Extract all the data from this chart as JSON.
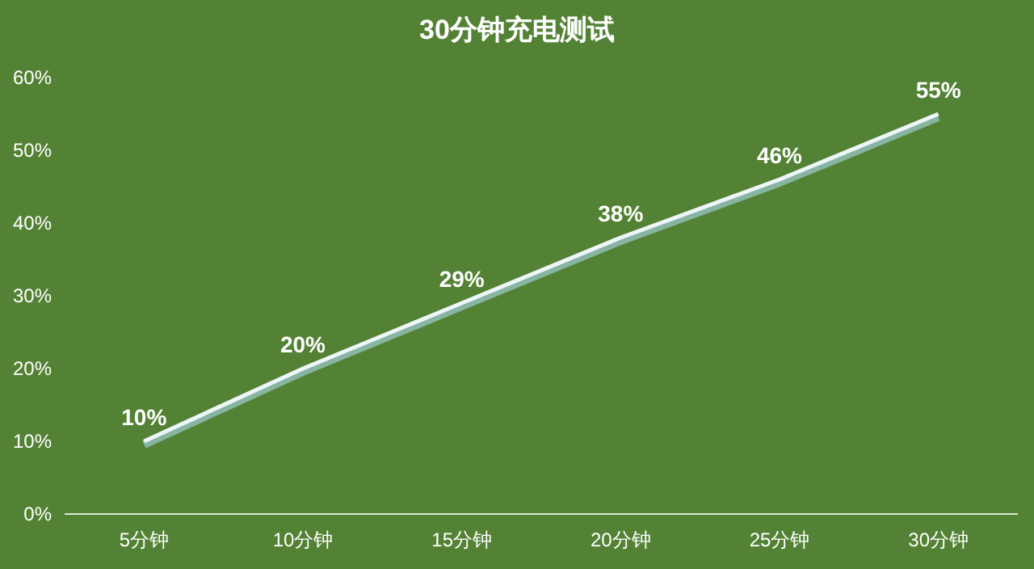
{
  "chart_data": {
    "type": "line",
    "title": "30分钟充电测试",
    "categories": [
      "5分钟",
      "10分钟",
      "15分钟",
      "20分钟",
      "25分钟",
      "30分钟"
    ],
    "series": [
      {
        "color": "#eef6fa",
        "values": [
          10,
          20,
          29,
          38,
          46,
          55
        ]
      }
    ],
    "ylim": [
      0,
      60
    ],
    "yticks": [
      {
        "value": 0,
        "label": "0%"
      },
      {
        "value": 10,
        "label": "10%"
      },
      {
        "value": 20,
        "label": "20%"
      },
      {
        "value": 30,
        "label": "30%"
      },
      {
        "value": 40,
        "label": "40%"
      },
      {
        "value": 50,
        "label": "50%"
      },
      {
        "value": 60,
        "label": "60%"
      }
    ],
    "value_labels": [
      "10%",
      "20%",
      "29%",
      "38%",
      "46%",
      "55%"
    ],
    "grid": false,
    "marker": "none",
    "line_style": "solid"
  }
}
